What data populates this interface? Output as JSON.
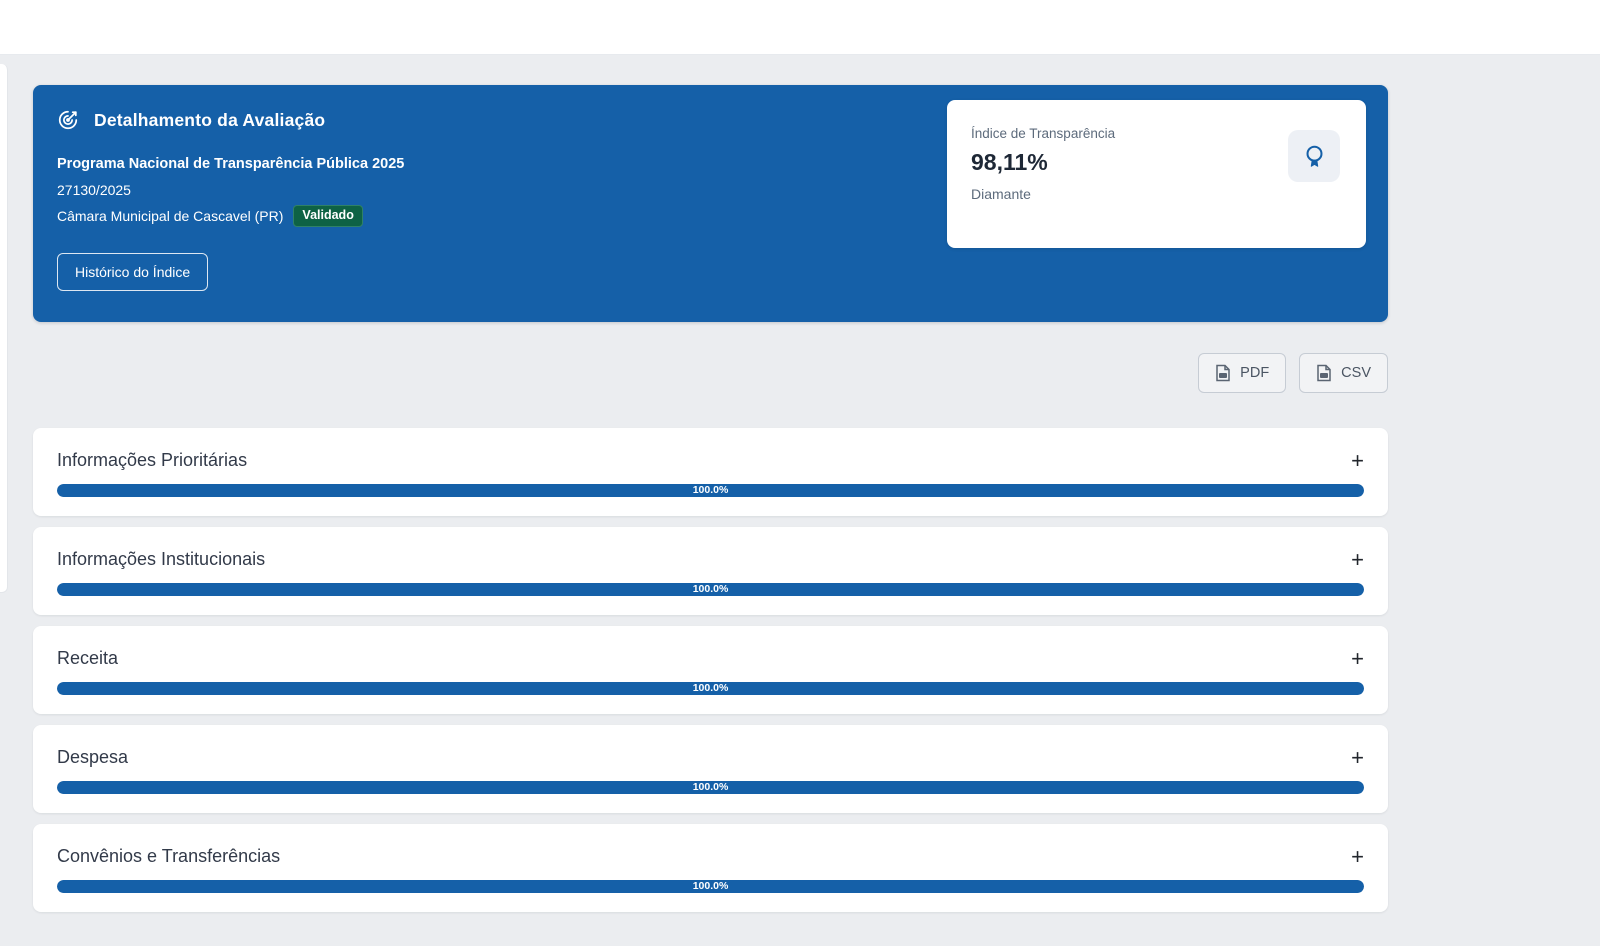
{
  "colors": {
    "accent_blue": "#1560a8",
    "badge_green": "#0e6245",
    "page_background": "#ebedf0"
  },
  "hero": {
    "icon": "bullseye-arrow-icon",
    "title": "Detalhamento da Avaliação",
    "program": "Programa Nacional de Transparência Pública 2025",
    "process_number": "27130/2025",
    "entity": "Câmara Municipal de Cascavel (PR)",
    "status_badge": "Validado",
    "history_button": "Histórico do Índice"
  },
  "score_card": {
    "label": "Índice de Transparência",
    "value": "98,11%",
    "tier": "Diamante",
    "icon": "medal-icon"
  },
  "export": {
    "pdf_label": "PDF",
    "csv_label": "CSV"
  },
  "sections": [
    {
      "title": "Informações Prioritárias",
      "progress_pct": 100,
      "progress_label": "100.0%",
      "expand_label": "+"
    },
    {
      "title": "Informações Institucionais",
      "progress_pct": 100,
      "progress_label": "100.0%",
      "expand_label": "+"
    },
    {
      "title": "Receita",
      "progress_pct": 100,
      "progress_label": "100.0%",
      "expand_label": "+"
    },
    {
      "title": "Despesa",
      "progress_pct": 100,
      "progress_label": "100.0%",
      "expand_label": "+"
    },
    {
      "title": "Convênios e Transferências",
      "progress_pct": 100,
      "progress_label": "100.0%",
      "expand_label": "+"
    }
  ]
}
